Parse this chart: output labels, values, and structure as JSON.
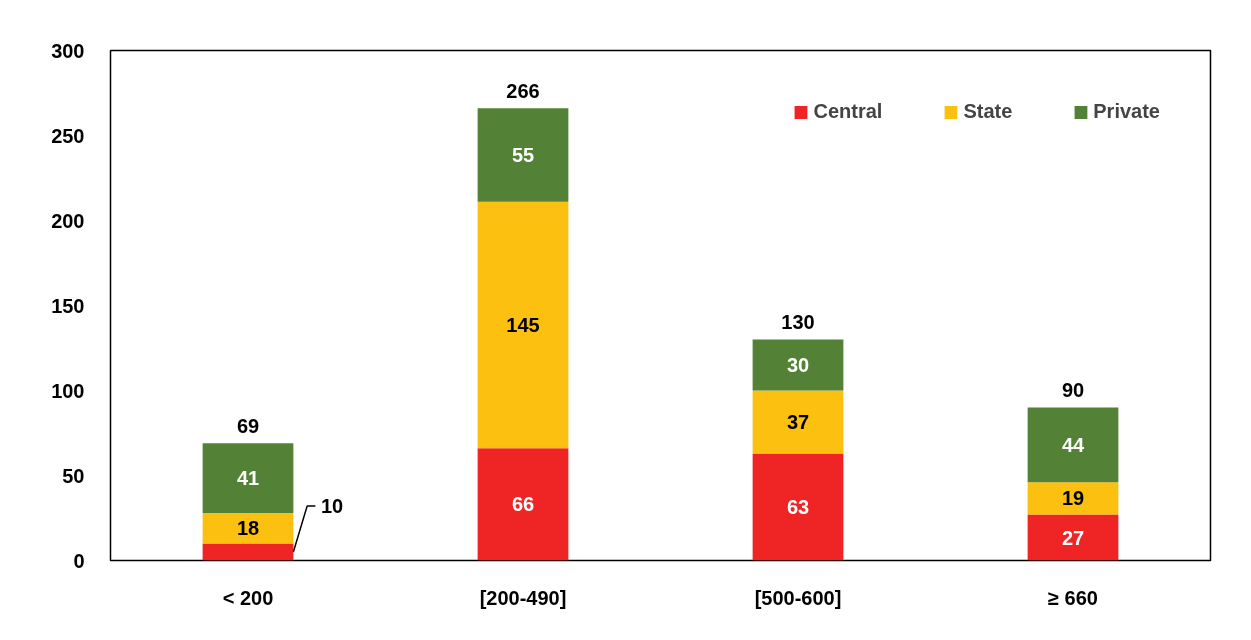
{
  "chart_data": {
    "type": "bar",
    "stacked": true,
    "categories": [
      "< 200",
      "[200-490]",
      "[500-600]",
      "≥ 660"
    ],
    "series": [
      {
        "name": "Central",
        "color": "#ee2524",
        "values": [
          10,
          66,
          63,
          27
        ]
      },
      {
        "name": "State",
        "color": "#fbc010",
        "values": [
          18,
          145,
          37,
          19
        ]
      },
      {
        "name": "Private",
        "color": "#538135",
        "values": [
          41,
          55,
          30,
          44
        ]
      }
    ],
    "totals": [
      "69",
      "266",
      "130",
      "90"
    ],
    "data_labels": true,
    "ylim": [
      0,
      300
    ],
    "yticks": [
      0,
      50,
      100,
      150,
      200,
      250,
      300
    ],
    "grid": false,
    "legend": "top right"
  }
}
